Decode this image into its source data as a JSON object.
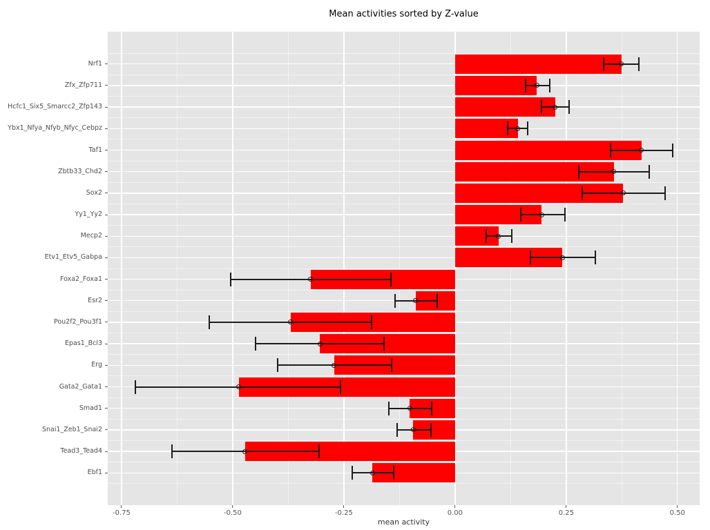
{
  "title": "Mean activities sorted by Z-value",
  "colors": {
    "bar": "#FF0000",
    "panel_bg": "#E5E5E5",
    "grid_major": "#FFFFFF",
    "grid_minor": "#FFFFFF",
    "error_bar": "#1c1c1c",
    "tick_text": "#555555",
    "category_text": "#4d4d4d",
    "title_text": "#000000"
  },
  "chart_data": {
    "type": "bar",
    "orientation": "horizontal",
    "title": "Mean activities sorted by Z-value",
    "xlabel": "mean activity",
    "ylabel": "",
    "grid": true,
    "legend": false,
    "xlim": [
      -0.781,
      0.55
    ],
    "x_major_ticks": [
      -0.75,
      -0.5,
      -0.25,
      0,
      0.25,
      0.5
    ],
    "x_major_tick_labels": [
      "-0.75",
      "-0.50",
      "-0.25",
      "0.00",
      "0.25",
      "0.50"
    ],
    "x_minor_ticks": [
      -0.625,
      -0.375,
      -0.125,
      0.125,
      0.375
    ],
    "categories": [
      "Nrf1",
      "Zfx_Zfp711",
      "Hcfc1_Six5_Smarcc2_Zfp143",
      "Ybx1_Nfya_Nfyb_Nfyc_Cebpz",
      "Taf1",
      "Zbtb33_Chd2",
      "Sox2",
      "Yy1_Yy2",
      "Mecp2",
      "Etv1_Etv5_Gabpa",
      "Foxa2_Foxa1",
      "Esr2",
      "Pou2f2_Pou3f1",
      "Epas1_Bcl3",
      "Erg",
      "Gata2_Gata1",
      "Smad1",
      "Snai1_Zeb1_Snai2",
      "Tead3_Tead4",
      "Ebf1"
    ],
    "values": [
      0.374,
      0.184,
      0.225,
      0.141,
      0.419,
      0.357,
      0.378,
      0.195,
      0.098,
      0.241,
      -0.325,
      -0.089,
      -0.37,
      -0.304,
      -0.272,
      -0.486,
      -0.102,
      -0.094,
      -0.472,
      -0.186
    ],
    "error_low": [
      0.334,
      0.159,
      0.194,
      0.118,
      0.349,
      0.278,
      0.286,
      0.147,
      0.07,
      0.169,
      -0.504,
      -0.135,
      -0.552,
      -0.448,
      -0.399,
      -0.719,
      -0.149,
      -0.13,
      -0.636,
      -0.231
    ],
    "error_high": [
      0.414,
      0.213,
      0.257,
      0.164,
      0.49,
      0.436,
      0.472,
      0.247,
      0.128,
      0.316,
      -0.144,
      -0.04,
      -0.187,
      -0.159,
      -0.142,
      -0.257,
      -0.053,
      -0.054,
      -0.306,
      -0.138
    ]
  }
}
